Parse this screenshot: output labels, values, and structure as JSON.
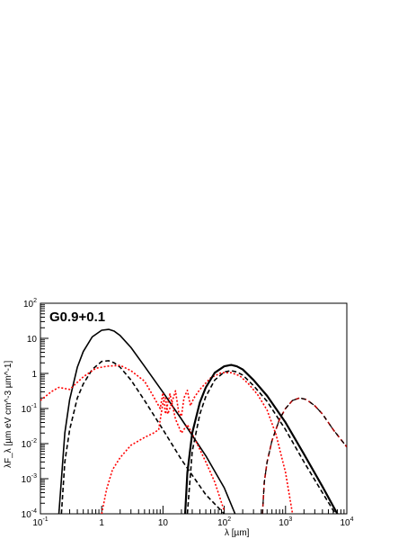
{
  "chart_data": {
    "type": "line",
    "title": "G0.9+0.1",
    "xlabel": "λ [µm]",
    "ylabel": "λF_λ [µm eV cm^-3 µm^-1]",
    "x_scale": "log",
    "y_scale": "log",
    "xlim": [
      0.1,
      10000
    ],
    "ylim": [
      0.0001,
      100
    ],
    "grid": false,
    "x_ticks": [
      {
        "base": "10",
        "exp": "-1"
      },
      {
        "base": "1",
        "exp": ""
      },
      {
        "base": "10",
        "exp": ""
      },
      {
        "base": "10",
        "exp": "2"
      },
      {
        "base": "10",
        "exp": "3"
      },
      {
        "base": "10",
        "exp": "4"
      }
    ],
    "y_ticks": [
      {
        "base": "10",
        "exp": "-4"
      },
      {
        "base": "10",
        "exp": "-3"
      },
      {
        "base": "10",
        "exp": "-2"
      },
      {
        "base": "10",
        "exp": "-1"
      },
      {
        "base": "1",
        "exp": ""
      },
      {
        "base": "10",
        "exp": ""
      },
      {
        "base": "10",
        "exp": "2"
      }
    ],
    "series": [
      {
        "style": "solid-thin",
        "color": "#000000",
        "x": [
          0.2,
          0.25,
          0.3,
          0.4,
          0.5,
          0.7,
          1.0,
          1.3,
          1.6,
          2,
          3,
          5,
          10,
          20,
          50,
          100,
          150
        ],
        "y": [
          0.0001,
          0.02,
          0.18,
          1.5,
          4.2,
          11,
          17,
          18,
          16,
          12,
          5.5,
          1.6,
          0.29,
          0.05,
          0.0045,
          0.00055,
          0.0001
        ]
      },
      {
        "style": "dashed",
        "color": "#000000",
        "x": [
          0.22,
          0.25,
          0.3,
          0.4,
          0.5,
          0.7,
          1.0,
          1.3,
          1.6,
          2,
          3,
          5,
          10,
          20,
          50,
          100,
          130
        ],
        "y": [
          0.0001,
          0.003,
          0.025,
          0.2,
          0.5,
          1.3,
          2.2,
          2.3,
          2.0,
          1.5,
          0.65,
          0.17,
          0.025,
          0.0035,
          0.00035,
          0.0001,
          5e-05
        ]
      },
      {
        "style": "dotted",
        "color": "#ff0000",
        "x": [
          0.1,
          0.15,
          0.2,
          0.3,
          0.5,
          0.8,
          1.2,
          2,
          3,
          5,
          7,
          9,
          10,
          11,
          13,
          16,
          20,
          25,
          35,
          50,
          70,
          100
        ],
        "y": [
          0.17,
          0.3,
          0.4,
          0.35,
          0.8,
          1.4,
          1.6,
          1.7,
          1.2,
          0.6,
          0.22,
          0.1,
          0.28,
          0.07,
          0.26,
          0.05,
          0.02,
          0.035,
          0.011,
          0.003,
          0.0008,
          0.00012
        ]
      },
      {
        "style": "dotted",
        "color": "#ff0000",
        "x": [
          1.0,
          1.2,
          1.5,
          2,
          3,
          5,
          7,
          8.5,
          10,
          11,
          12,
          14,
          16,
          18,
          20,
          22,
          25,
          28,
          32
        ],
        "y": [
          0.0001,
          0.0005,
          0.0018,
          0.004,
          0.009,
          0.015,
          0.02,
          0.025,
          0.15,
          0.2,
          0.07,
          0.15,
          0.32,
          0.08,
          0.06,
          0.2,
          0.33,
          0.12,
          0.2
        ]
      },
      {
        "style": "dotted",
        "color": "#ff0000",
        "x": [
          32,
          40,
          60,
          90,
          130,
          180,
          250,
          350,
          500,
          700,
          1000,
          1300
        ],
        "y": [
          0.2,
          0.35,
          0.75,
          1.05,
          1.05,
          0.85,
          0.5,
          0.25,
          0.09,
          0.018,
          0.0015,
          0.0001
        ]
      },
      {
        "style": "solid-thick",
        "color": "#000000",
        "x": [
          23,
          25,
          30,
          40,
          50,
          70,
          100,
          130,
          160,
          200,
          300,
          500,
          1000,
          2000,
          4000,
          7000
        ],
        "y": [
          0.0001,
          0.0015,
          0.02,
          0.15,
          0.4,
          1.05,
          1.6,
          1.75,
          1.6,
          1.3,
          0.65,
          0.23,
          0.04,
          0.005,
          0.0006,
          0.0001
        ]
      },
      {
        "style": "dashed",
        "color": "#000000",
        "x": [
          25,
          30,
          40,
          50,
          70,
          100,
          130,
          160,
          200,
          300,
          500,
          1000,
          2000,
          4000,
          6500
        ],
        "y": [
          0.0001,
          0.006,
          0.07,
          0.22,
          0.65,
          1.1,
          1.2,
          1.1,
          0.9,
          0.45,
          0.16,
          0.025,
          0.003,
          0.0004,
          0.0001
        ]
      },
      {
        "style": "dashed",
        "color": "#aa0000",
        "x": [
          420,
          450,
          500,
          600,
          800,
          1000,
          1300,
          1700,
          2200,
          3000,
          4000,
          6000,
          10000
        ],
        "y": [
          0.0001,
          0.0008,
          0.003,
          0.012,
          0.05,
          0.1,
          0.17,
          0.2,
          0.18,
          0.12,
          0.07,
          0.025,
          0.008
        ]
      },
      {
        "style": "dashed-overlay",
        "color": "#000000",
        "x": [
          420,
          450,
          500,
          600,
          800,
          1000,
          1300,
          1700,
          2200,
          3000,
          4000,
          6000,
          10000
        ],
        "y": [
          0.0001,
          0.0008,
          0.003,
          0.012,
          0.05,
          0.1,
          0.17,
          0.2,
          0.18,
          0.12,
          0.07,
          0.025,
          0.008
        ]
      }
    ]
  }
}
